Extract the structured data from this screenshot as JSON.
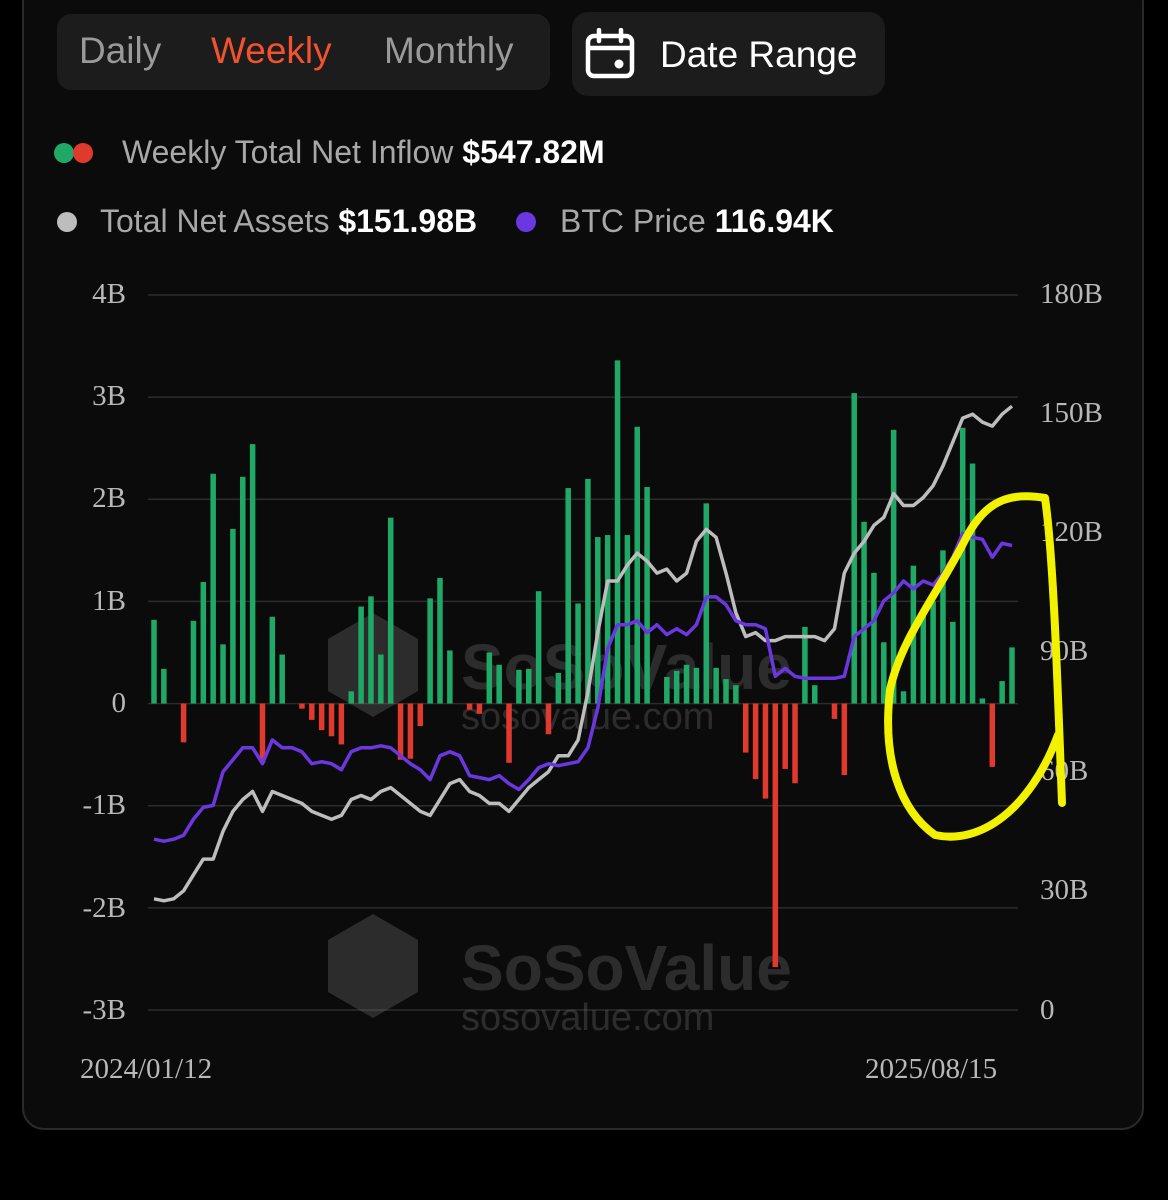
{
  "tabs": {
    "daily": "Daily",
    "weekly": "Weekly",
    "monthly": "Monthly",
    "active": "Weekly",
    "active_color": "#f2522e"
  },
  "date_range": {
    "label": "Date Range",
    "icon": "calendar-icon"
  },
  "legend": {
    "inflow_label": "Weekly Total Net Inflow",
    "inflow_value": "$547.82M",
    "assets_label": "Total Net Assets",
    "assets_value": "$151.98B",
    "btc_label": "BTC Price",
    "btc_value": "116.94K"
  },
  "colors": {
    "positive": "#1fa866",
    "negative": "#e0392e",
    "assets_line": "#bdbdbd",
    "btc_line": "#6a37e0",
    "annotation": "#f2f200"
  },
  "watermark": {
    "brand": "SoSoValue",
    "url": "sosovalue.com"
  },
  "chart_data": {
    "type": "bar",
    "left_axis": {
      "ticks": [
        "4B",
        "3B",
        "2B",
        "1B",
        "0",
        "-1B",
        "-2B",
        "-3B"
      ],
      "ylim": [
        -3,
        4
      ],
      "unit": "B"
    },
    "right_axis": {
      "ticks": [
        "180B",
        "150B",
        "120B",
        "90B",
        "60B",
        "30B",
        "0"
      ],
      "ylim": [
        0,
        180
      ],
      "unit": "B"
    },
    "x_labels": [
      "2024/01/12",
      "2025/08/15"
    ],
    "grid": true,
    "inflow_values": [
      0.82,
      0.34,
      0.0,
      -0.38,
      0.81,
      1.19,
      2.25,
      0.58,
      1.71,
      2.22,
      2.54,
      -0.58,
      0.85,
      0.48,
      0.0,
      -0.05,
      -0.16,
      -0.26,
      -0.32,
      -0.4,
      0.12,
      0.95,
      1.05,
      0.48,
      1.82,
      -0.55,
      -0.54,
      -0.22,
      1.03,
      1.23,
      0.52,
      0.0,
      -0.06,
      -0.1,
      0.5,
      0.38,
      -0.58,
      0.33,
      0.34,
      1.1,
      -0.3,
      0.3,
      2.11,
      0.98,
      2.2,
      1.63,
      1.65,
      3.36,
      1.65,
      2.71,
      2.12,
      0.0,
      0.26,
      0.32,
      0.38,
      0.35,
      1.96,
      0.35,
      0.24,
      0.18,
      -0.48,
      -0.74,
      -0.93,
      -2.58,
      -0.64,
      -0.78,
      0.75,
      0.18,
      0.0,
      -0.15,
      -0.7,
      3.04,
      1.78,
      1.28,
      0.6,
      2.68,
      0.12,
      1.35,
      0.9,
      1.0,
      1.5,
      0.8,
      2.7,
      2.35,
      0.05,
      -0.62,
      0.22,
      0.55
    ],
    "total_net_assets_B": [
      28,
      27.5,
      28,
      30,
      34,
      38,
      38,
      45,
      50,
      53,
      55,
      50,
      55,
      54,
      53,
      52,
      50,
      49,
      48,
      49,
      53,
      54,
      53,
      55,
      56,
      54,
      52,
      50,
      49,
      53,
      57,
      58,
      55,
      54,
      52,
      52,
      50,
      53,
      56,
      58,
      60,
      64,
      64,
      68,
      80,
      95,
      108,
      108,
      112,
      115,
      113,
      110,
      111,
      108,
      110,
      118,
      121,
      119,
      110,
      100,
      94,
      95,
      93,
      93,
      94,
      94,
      94,
      94,
      93,
      96,
      110,
      115,
      118,
      122,
      124,
      130,
      127,
      127,
      129,
      132,
      137,
      143,
      149,
      150,
      148,
      147,
      150,
      152
    ],
    "btc_price_K": [
      43,
      42.5,
      43,
      44,
      48,
      51,
      51.5,
      60,
      63,
      66,
      66,
      62,
      68,
      66,
      66,
      65,
      62,
      62.5,
      62,
      60.5,
      65,
      66,
      66,
      66.5,
      66,
      64,
      62,
      60.5,
      58,
      64,
      65,
      64,
      59,
      58.5,
      58,
      59,
      57,
      55.5,
      58,
      61,
      62,
      61.5,
      62,
      62.5,
      66,
      76,
      91,
      97,
      97,
      98,
      95,
      97,
      94.5,
      96,
      94.5,
      97,
      104,
      104,
      102,
      98,
      97,
      97,
      96,
      84,
      86,
      84,
      83.5,
      83.5,
      83.5,
      83.5,
      84,
      94,
      96,
      98,
      103,
      105,
      108,
      106,
      108,
      107,
      110,
      114,
      120,
      119,
      118.5,
      114,
      117.5,
      116.94
    ]
  }
}
